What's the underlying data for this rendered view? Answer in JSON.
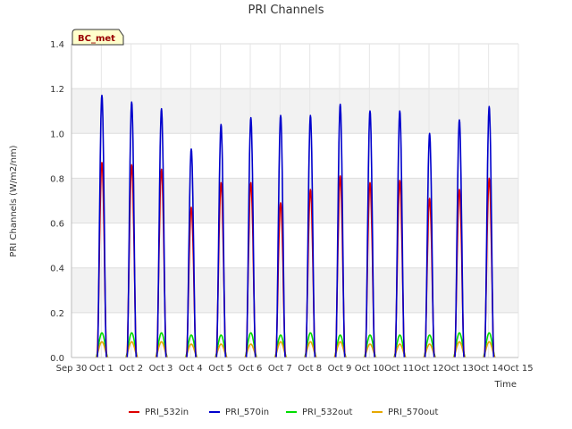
{
  "chart_data": {
    "type": "line",
    "title": "PRI Channels",
    "xlabel": "Time",
    "ylabel": "PRI Channels (W/m2/nm)",
    "badge": "BC_met",
    "ylim": [
      0,
      1.4
    ],
    "yticks": [
      "0.0",
      "0.2",
      "0.4",
      "0.6",
      "0.8",
      "1.0",
      "1.2",
      "1.4"
    ],
    "xlim": [
      0,
      15
    ],
    "xticks": [
      "Sep 30",
      "Oct 1",
      "Oct 2",
      "Oct 3",
      "Oct 4",
      "Oct 5",
      "Oct 6",
      "Oct 7",
      "Oct 8",
      "Oct 9",
      "Oct 10",
      "Oct 11",
      "Oct 12",
      "Oct 13",
      "Oct 14",
      "Oct 15"
    ],
    "days": [
      "Oct 1",
      "Oct 2",
      "Oct 3",
      "Oct 4",
      "Oct 5",
      "Oct 6",
      "Oct 7",
      "Oct 8",
      "Oct 9",
      "Oct 10",
      "Oct 11",
      "Oct 12",
      "Oct 13",
      "Oct 14"
    ],
    "series": [
      {
        "name": "PRI_532in",
        "color": "#dd0000",
        "daily_peak": [
          0.87,
          0.86,
          0.84,
          0.67,
          0.78,
          0.78,
          0.69,
          0.75,
          0.81,
          0.78,
          0.79,
          0.71,
          0.75,
          0.8
        ]
      },
      {
        "name": "PRI_570in",
        "color": "#0000cc",
        "daily_peak": [
          1.17,
          1.14,
          1.11,
          0.93,
          1.04,
          1.07,
          1.08,
          1.08,
          1.13,
          1.1,
          1.1,
          1.0,
          1.06,
          1.12
        ]
      },
      {
        "name": "PRI_532out",
        "color": "#00dd00",
        "daily_peak": [
          0.11,
          0.11,
          0.11,
          0.1,
          0.1,
          0.11,
          0.1,
          0.11,
          0.1,
          0.1,
          0.1,
          0.1,
          0.11,
          0.11
        ]
      },
      {
        "name": "PRI_570out",
        "color": "#e6a800",
        "daily_peak": [
          0.07,
          0.07,
          0.07,
          0.06,
          0.06,
          0.06,
          0.07,
          0.07,
          0.07,
          0.06,
          0.06,
          0.06,
          0.07,
          0.07
        ]
      }
    ]
  }
}
